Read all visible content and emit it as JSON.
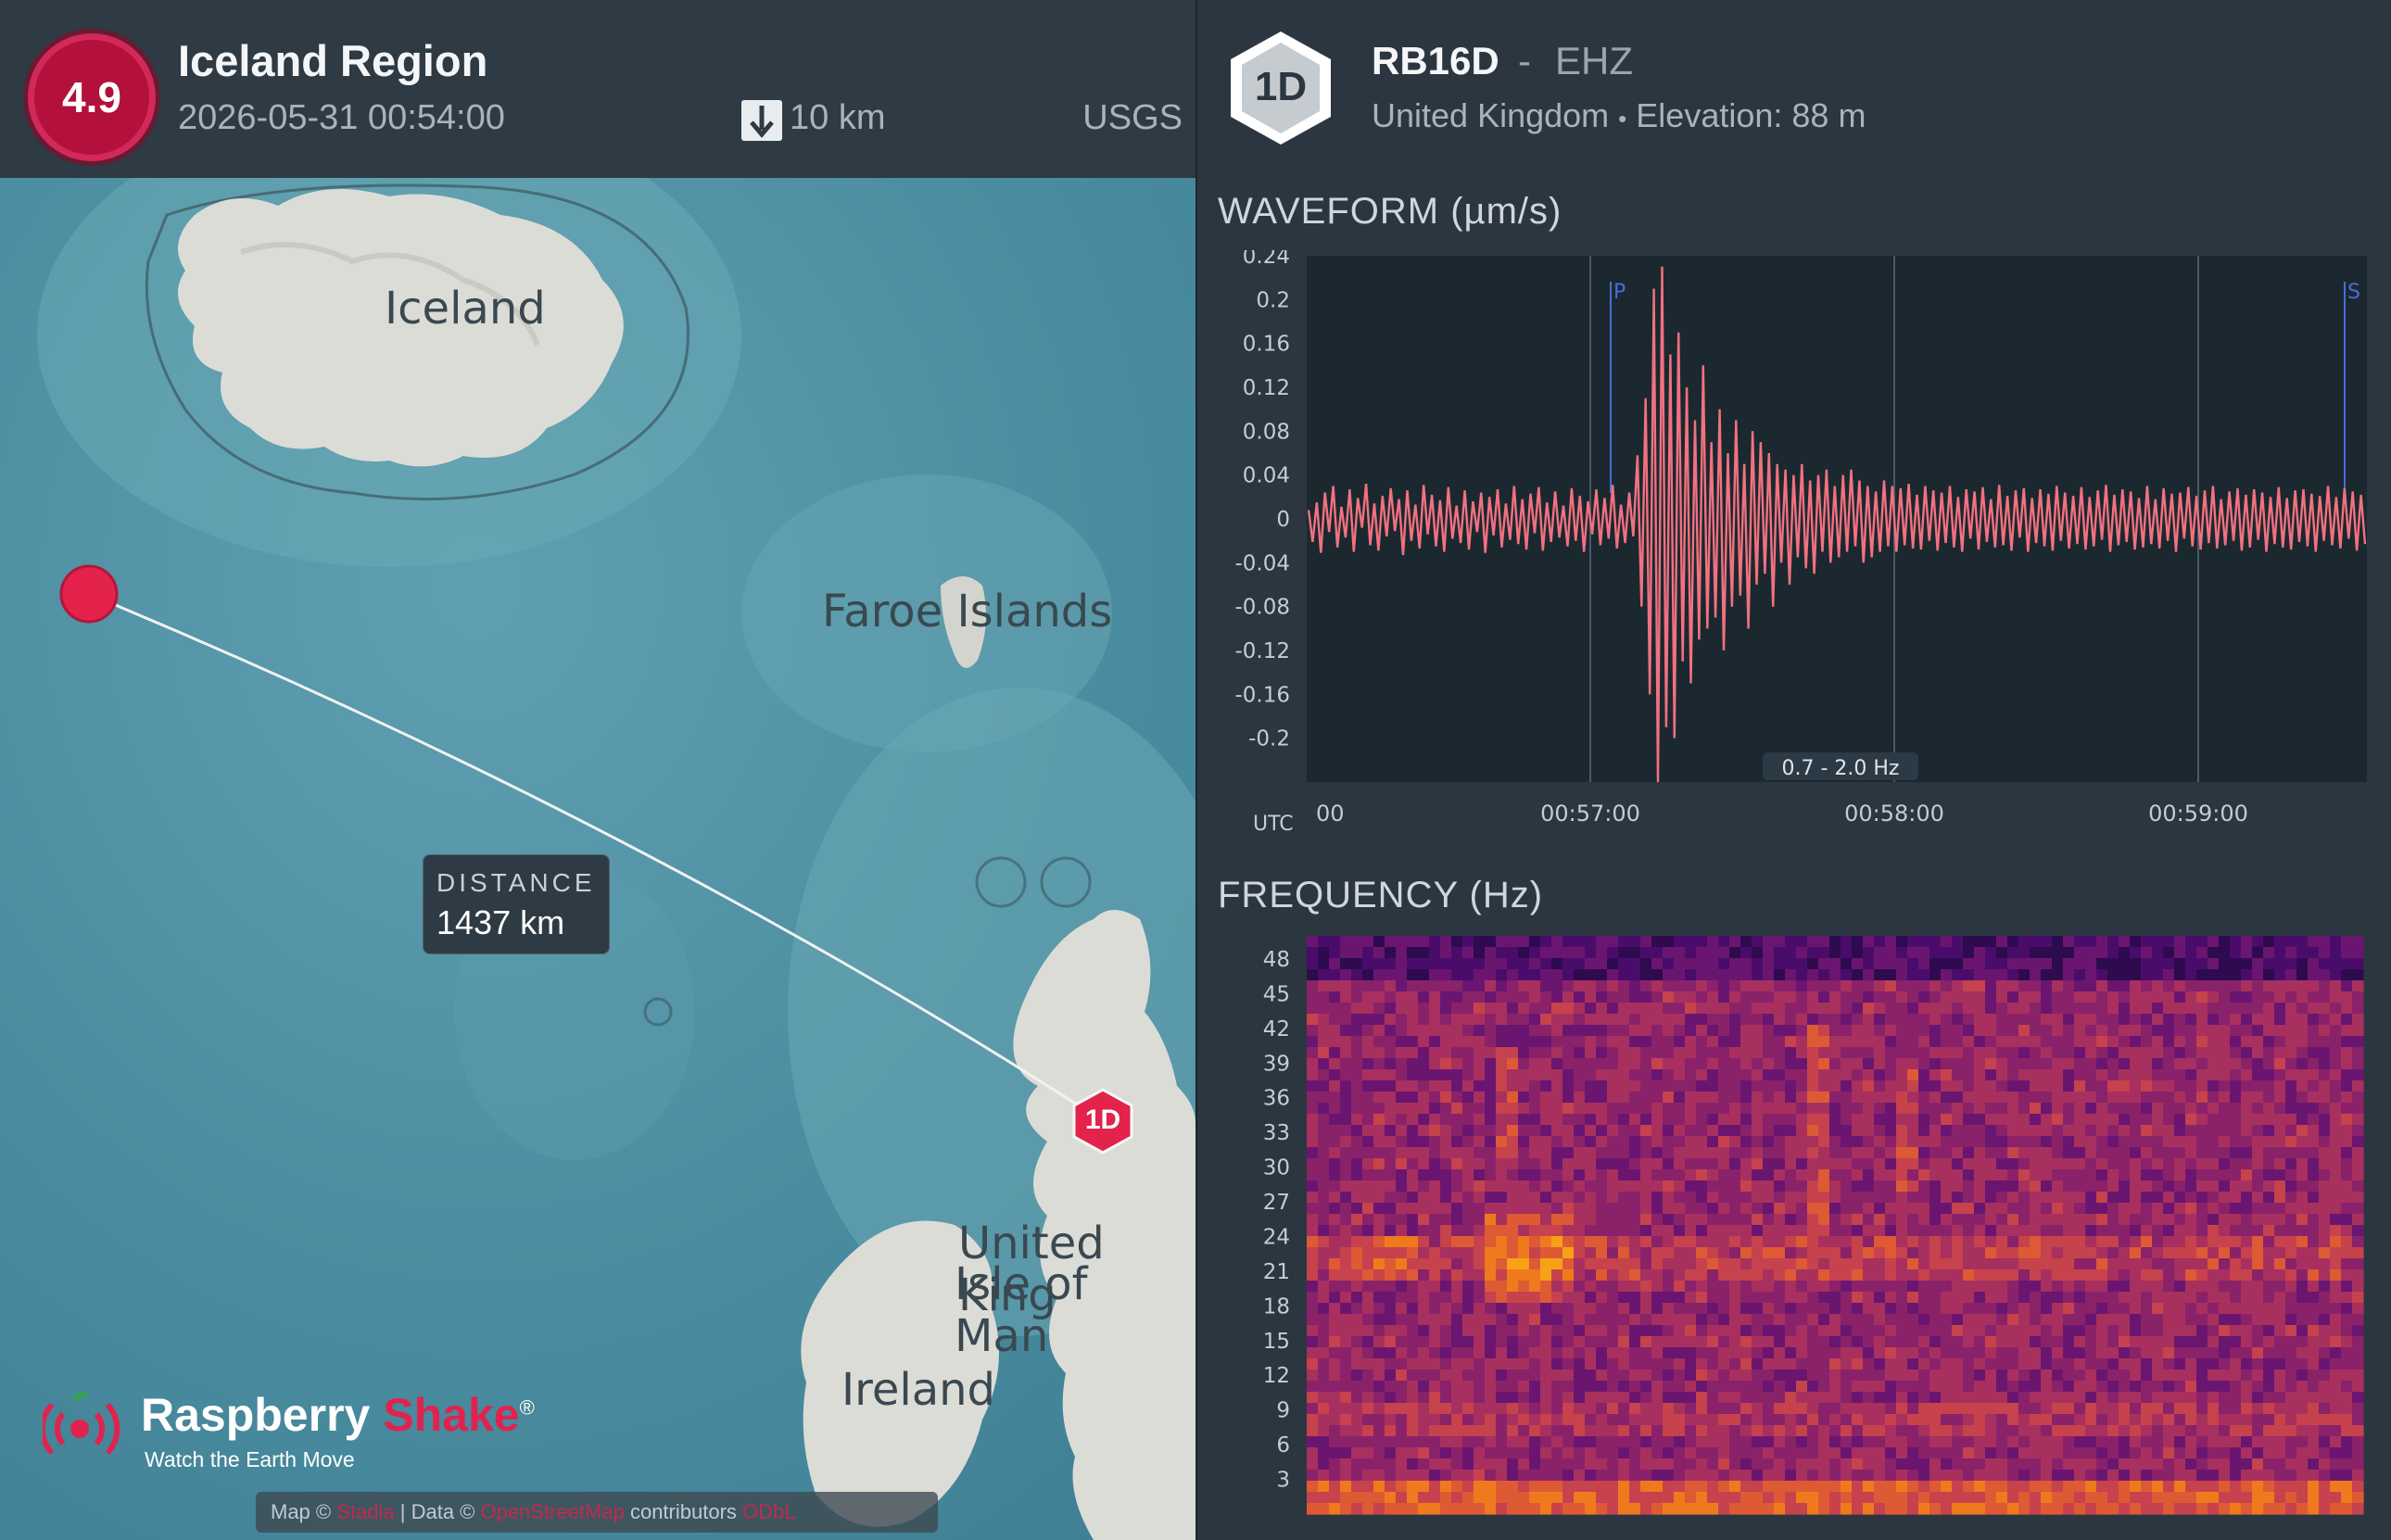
{
  "event": {
    "magnitude": "4.9",
    "region": "Iceland Region",
    "datetime": "2026-05-31 00:54:00",
    "depth": "10 km",
    "source": "USGS"
  },
  "map": {
    "labels": {
      "iceland": "Iceland",
      "faroe": "Faroe Islands",
      "uk": "United King",
      "isle_of_man": "Isle of Man",
      "ireland": "Ireland"
    },
    "station_marker": "1D",
    "distance_title": "DISTANCE",
    "distance_value": "1437 km",
    "attribution": {
      "map_prefix": "Map ©",
      "map_link": "Stadia",
      "data_prefix": "| Data ©",
      "data_link": "OpenStreetMap",
      "data_suffix": "contributors",
      "extra_link": "ODbL"
    }
  },
  "brand": {
    "name_part1": "Raspberry",
    "name_part2": "Shake",
    "registered": "®",
    "tagline": "Watch the Earth Move"
  },
  "station": {
    "badge": "1D",
    "code": "RB16D",
    "separator": "-",
    "channel": "EHZ",
    "country": "United Kingdom",
    "bullet": "•",
    "elevation": "Elevation: 88 m"
  },
  "waveform": {
    "title": "WAVEFORM (µm/s)",
    "filter": "0.7 - 2.0 Hz",
    "utc_label": "UTC",
    "phase_p": "P",
    "phase_s": "S"
  },
  "frequency": {
    "title": "FREQUENCY (Hz)"
  },
  "chart_data": [
    {
      "type": "line",
      "title": "WAVEFORM (µm/s)",
      "xlabel": "UTC",
      "ylabel": "",
      "ylim": [
        -0.24,
        0.24
      ],
      "yticks": [
        "0.24",
        "0.2",
        "0.16",
        "0.12",
        "0.08",
        "0.04",
        "0",
        "-0.04",
        "-0.08",
        "-0.12",
        "-0.16",
        "-0.2"
      ],
      "xticks": [
        "00",
        "00:57:00",
        "00:58:00",
        "00:59:00"
      ],
      "annotations": [
        "P",
        "S",
        "0.7 - 2.0 Hz"
      ],
      "series": [
        {
          "values": [
            0.008,
            -0.021,
            0.015,
            -0.031,
            0.024,
            -0.012,
            0.03,
            -0.026,
            0.011,
            -0.017,
            0.027,
            -0.03,
            0.019,
            -0.008,
            0.032,
            -0.024,
            0.014,
            -0.029,
            0.021,
            -0.016,
            0.028,
            -0.011,
            0.018,
            -0.033,
            0.026,
            -0.02,
            0.013,
            -0.027,
            0.031,
            -0.014,
            0.022,
            -0.025,
            0.017,
            -0.03,
            0.029,
            -0.018,
            0.012,
            -0.022,
            0.026,
            -0.028,
            0.016,
            -0.012,
            0.024,
            -0.031,
            0.02,
            -0.015,
            0.027,
            -0.026,
            0.014,
            -0.019,
            0.03,
            -0.023,
            0.018,
            -0.028,
            0.023,
            -0.013,
            0.029,
            -0.029,
            0.015,
            -0.021,
            0.025,
            -0.017,
            0.012,
            -0.025,
            0.028,
            -0.02,
            0.021,
            -0.03,
            0.016,
            -0.014,
            0.027,
            -0.024,
            0.019,
            -0.018,
            0.031,
            -0.027,
            0.013,
            -0.022,
            0.024,
            -0.016,
            0.058,
            -0.08,
            0.11,
            -0.16,
            0.21,
            -0.24,
            0.23,
            -0.19,
            0.15,
            -0.2,
            0.17,
            -0.13,
            0.12,
            -0.15,
            0.09,
            -0.11,
            0.14,
            -0.1,
            0.07,
            -0.09,
            0.1,
            -0.12,
            0.06,
            -0.08,
            0.09,
            -0.07,
            0.05,
            -0.1,
            0.08,
            -0.06,
            0.07,
            -0.05,
            0.06,
            -0.08,
            0.05,
            -0.04,
            0.045,
            -0.06,
            0.04,
            -0.035,
            0.05,
            -0.045,
            0.035,
            -0.05,
            0.04,
            -0.03,
            0.045,
            -0.04,
            0.03,
            -0.035,
            0.04,
            -0.03,
            0.045,
            -0.025,
            0.035,
            -0.04,
            0.03,
            -0.035,
            0.025,
            -0.03,
            0.035,
            -0.025,
            0.03,
            -0.03,
            0.028,
            -0.024,
            0.032,
            -0.027,
            0.022,
            -0.028,
            0.03,
            -0.02,
            0.026,
            -0.029,
            0.024,
            -0.022,
            0.03,
            -0.026,
            0.02,
            -0.03,
            0.027,
            -0.018,
            0.025,
            -0.028,
            0.029,
            -0.021,
            0.018,
            -0.026,
            0.031,
            -0.024,
            0.021,
            -0.029,
            0.026,
            -0.017,
            0.028,
            -0.03,
            0.019,
            -0.022,
            0.027,
            -0.025,
            0.023,
            -0.029,
            0.03,
            -0.02,
            0.024,
            -0.027,
            0.021,
            -0.023,
            0.029,
            -0.028,
            0.02,
            -0.025,
            0.026,
            -0.019,
            0.031,
            -0.03,
            0.022,
            -0.024,
            0.027,
            -0.021,
            0.025,
            -0.028,
            0.019,
            -0.026,
            0.03,
            -0.023,
            0.018,
            -0.027,
            0.028,
            -0.02,
            0.023,
            -0.03,
            0.024,
            -0.018,
            0.029,
            -0.025,
            0.021,
            -0.028,
            0.026,
            -0.022,
            0.03,
            -0.027,
            0.018,
            -0.024,
            0.025,
            -0.02,
            0.028,
            -0.029,
            0.022,
            -0.026,
            0.027,
            -0.019,
            0.024,
            -0.03,
            0.02,
            -0.023,
            0.029,
            -0.026,
            0.019,
            -0.028,
            0.026,
            -0.021,
            0.027,
            -0.025,
            0.023,
            -0.03,
            0.021,
            -0.02,
            0.03,
            -0.024,
            0.02,
            -0.027,
            0.028,
            -0.018,
            0.025,
            -0.029,
            0.022,
            -0.023
          ]
        }
      ]
    },
    {
      "type": "heatmap",
      "title": "FREQUENCY (Hz)",
      "xlabel": "",
      "ylabel": "FREQUENCY (Hz)",
      "ylim": [
        0,
        50
      ],
      "yticks": [
        "48",
        "45",
        "42",
        "39",
        "36",
        "33",
        "30",
        "27",
        "24",
        "21",
        "18",
        "15",
        "12",
        "9",
        "6",
        "3"
      ],
      "colormap": "inferno"
    }
  ]
}
